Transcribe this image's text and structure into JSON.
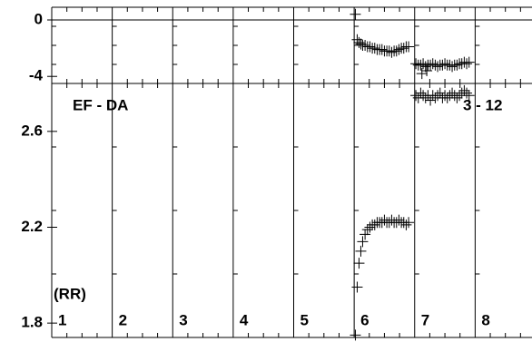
{
  "chart_data": [
    {
      "type": "scatter",
      "xlim": [
        1,
        8.94
      ],
      "ylim": [
        -4.5,
        0.9
      ],
      "yticks": [
        0,
        -4
      ],
      "series": [
        {
          "color": "#000000",
          "x": [
            6.02,
            6.05,
            6.08,
            6.11,
            6.14,
            6.18,
            6.22,
            6.26,
            6.3,
            6.34,
            6.38,
            6.42,
            6.46,
            6.5,
            6.54,
            6.58,
            6.62,
            6.66,
            6.7,
            6.74,
            6.78,
            6.82,
            6.86,
            6.9
          ],
          "values": [
            0.4,
            -1.4,
            -1.6,
            -1.7,
            -1.8,
            -1.8,
            -1.9,
            -1.9,
            -2.0,
            -2.0,
            -2.1,
            -2.1,
            -2.1,
            -2.2,
            -2.2,
            -2.2,
            -2.3,
            -2.2,
            -2.2,
            -2.1,
            -2.0,
            -2.0,
            -1.9,
            -1.9
          ]
        },
        {
          "color": "#000000",
          "x": [
            7.02,
            7.06,
            7.1,
            7.14,
            7.18,
            7.22,
            7.26,
            7.3,
            7.34,
            7.38,
            7.42,
            7.46,
            7.5,
            7.54,
            7.58,
            7.62,
            7.66,
            7.7,
            7.74,
            7.78,
            7.82,
            7.86,
            7.9,
            7.12,
            7.2
          ],
          "values": [
            -3.1,
            -3.2,
            -3.2,
            -3.1,
            -3.3,
            -3.2,
            -3.2,
            -3.1,
            -3.2,
            -3.3,
            -3.2,
            -3.2,
            -3.1,
            -3.2,
            -3.2,
            -3.3,
            -3.2,
            -3.2,
            -3.1,
            -3.1,
            -3.0,
            -3.1,
            -3.0,
            -3.8,
            -3.6
          ]
        }
      ]
    },
    {
      "type": "scatter",
      "xlim": [
        1,
        8.94
      ],
      "ylim": [
        1.74,
        2.8
      ],
      "xticks": [
        1,
        2,
        3,
        4,
        5,
        6,
        7,
        8
      ],
      "yticks": [
        2.6,
        2.2,
        1.8
      ],
      "annotations": [
        "EF - DA",
        "3 - 12",
        "(RR)"
      ],
      "series": [
        {
          "color": "#000000",
          "x": [
            6.02,
            6.05,
            6.08,
            6.11,
            6.14,
            6.18,
            6.22,
            6.26,
            6.3,
            6.34,
            6.38,
            6.42,
            6.46,
            6.5,
            6.54,
            6.58,
            6.62,
            6.66,
            6.7,
            6.74,
            6.78,
            6.82,
            6.86,
            6.9
          ],
          "values": [
            1.75,
            1.95,
            2.05,
            2.1,
            2.14,
            2.17,
            2.19,
            2.2,
            2.21,
            2.21,
            2.22,
            2.22,
            2.22,
            2.23,
            2.22,
            2.22,
            2.23,
            2.22,
            2.22,
            2.23,
            2.22,
            2.22,
            2.21,
            2.22
          ]
        },
        {
          "color": "#000000",
          "x": [
            7.02,
            7.06,
            7.1,
            7.14,
            7.18,
            7.22,
            7.26,
            7.3,
            7.34,
            7.38,
            7.42,
            7.46,
            7.5,
            7.54,
            7.58,
            7.62,
            7.66,
            7.7,
            7.74,
            7.78,
            7.82,
            7.86,
            7.9
          ],
          "values": [
            2.75,
            2.74,
            2.76,
            2.75,
            2.74,
            2.75,
            2.73,
            2.75,
            2.74,
            2.75,
            2.76,
            2.74,
            2.75,
            2.74,
            2.75,
            2.76,
            2.75,
            2.74,
            2.75,
            2.76,
            2.77,
            2.76,
            2.75
          ]
        }
      ]
    }
  ]
}
